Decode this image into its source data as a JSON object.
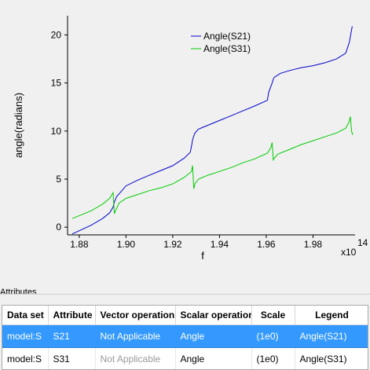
{
  "chart_data": {
    "type": "line",
    "xlabel": "f",
    "ylabel": "angle(radians)",
    "x_multiplier_label": "x10",
    "x_multiplier_exponent": "14",
    "xlim": [
      1.875,
      1.998
    ],
    "ylim": [
      -0.8,
      22
    ],
    "x_ticks": [
      "1.88",
      "1.90",
      "1.92",
      "1.94",
      "1.96",
      "1.98"
    ],
    "x_tick_values": [
      1.88,
      1.9,
      1.92,
      1.94,
      1.96,
      1.98
    ],
    "y_ticks": [
      "0",
      "5",
      "10",
      "15",
      "20"
    ],
    "y_tick_values": [
      0,
      5,
      10,
      15,
      20
    ],
    "legend_position": "top-right",
    "series": [
      {
        "name": "Angle(S21)",
        "color": "#0000cc",
        "x": [
          1.877,
          1.885,
          1.89,
          1.893,
          1.8945,
          1.895,
          1.896,
          1.8975,
          1.9,
          1.905,
          1.91,
          1.915,
          1.92,
          1.925,
          1.9275,
          1.928,
          1.9285,
          1.929,
          1.9295,
          1.931,
          1.935,
          1.94,
          1.945,
          1.95,
          1.955,
          1.9605,
          1.961,
          1.9625,
          1.963,
          1.9635,
          1.966,
          1.97,
          1.975,
          1.98,
          1.985,
          1.99,
          1.994,
          1.9955,
          1.9968
        ],
        "y": [
          -0.7,
          0.2,
          0.9,
          1.5,
          2.1,
          2.6,
          3.2,
          3.6,
          4.3,
          4.9,
          5.4,
          5.9,
          6.4,
          7.2,
          7.8,
          8.4,
          9.1,
          9.5,
          9.8,
          10.2,
          10.6,
          11.1,
          11.6,
          12.1,
          12.6,
          13.2,
          14.0,
          15.0,
          15.4,
          15.6,
          16.0,
          16.3,
          16.6,
          16.8,
          17.1,
          17.5,
          18.1,
          19.2,
          20.9
        ]
      },
      {
        "name": "Angle(S31)",
        "color": "#00cc00",
        "x": [
          1.877,
          1.885,
          1.89,
          1.893,
          1.894,
          1.8945,
          1.895,
          1.8955,
          1.897,
          1.9,
          1.905,
          1.91,
          1.915,
          1.92,
          1.925,
          1.928,
          1.9285,
          1.929,
          1.9295,
          1.931,
          1.935,
          1.94,
          1.945,
          1.95,
          1.955,
          1.9605,
          1.962,
          1.9625,
          1.963,
          1.9635,
          1.965,
          1.97,
          1.975,
          1.98,
          1.985,
          1.99,
          1.994,
          1.9955,
          1.996,
          1.9965,
          1.997
        ],
        "y": [
          0.9,
          1.7,
          2.4,
          3.0,
          3.4,
          3.6,
          1.4,
          1.7,
          2.5,
          3.0,
          3.4,
          3.8,
          4.1,
          4.5,
          5.2,
          5.8,
          6.4,
          4.0,
          4.5,
          5.0,
          5.4,
          5.8,
          6.2,
          6.7,
          7.1,
          7.7,
          8.3,
          8.8,
          7.0,
          7.2,
          7.6,
          8.1,
          8.6,
          9.0,
          9.4,
          9.8,
          10.3,
          11.0,
          11.5,
          10.0,
          9.6
        ]
      }
    ]
  },
  "attributes": {
    "title": "Attributes",
    "columns": [
      "Data set",
      "Attribute",
      "Vector operation",
      "Scalar operation",
      "Scale",
      "Legend"
    ],
    "rows": [
      {
        "data_set": "model:S",
        "attribute": "S21",
        "vector_operation": "Not Applicable",
        "scalar_operation": "Angle",
        "scale": "(1e0)",
        "legend": "Angle(S21)",
        "selected": true
      },
      {
        "data_set": "model:S",
        "attribute": "S31",
        "vector_operation": "Not Applicable",
        "scalar_operation": "Angle",
        "scale": "(1e0)",
        "legend": "Angle(S31)",
        "selected": false
      }
    ]
  }
}
